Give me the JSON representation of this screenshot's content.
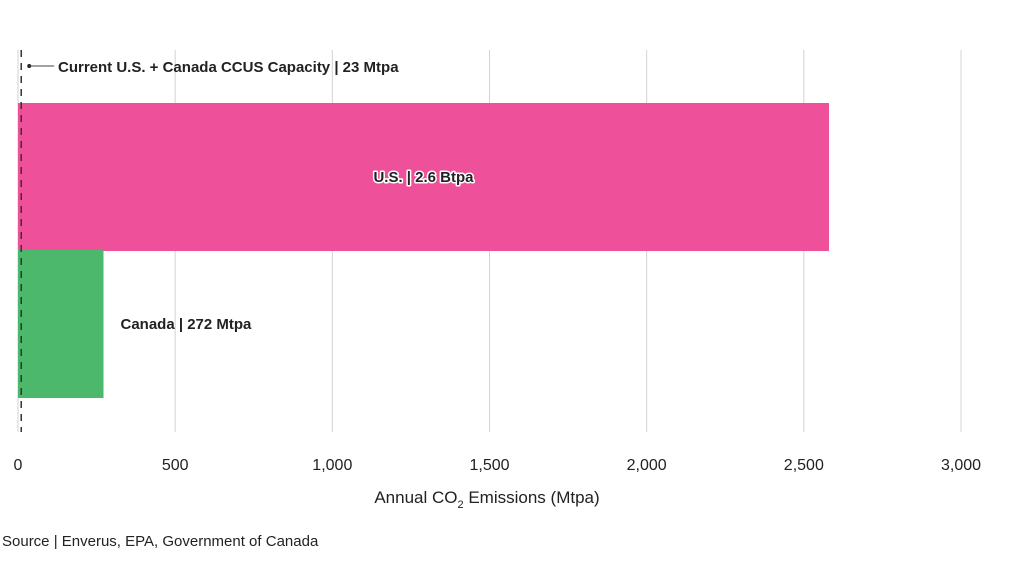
{
  "chart_data": {
    "type": "bar",
    "orientation": "horizontal",
    "title": "",
    "xlabel": "Annual CO2 Emissions (Mtpa)",
    "xlabel_parts": {
      "pre": "Annual CO",
      "sub": "2",
      "post": " Emissions (Mtpa)"
    },
    "ylabel": "",
    "xlim": [
      0,
      3000
    ],
    "x_ticks": [
      0,
      500,
      1000,
      1500,
      2000,
      2500,
      3000
    ],
    "x_tick_labels": [
      "0",
      "500",
      "1,000",
      "1,500",
      "2,000",
      "2,500",
      "3,000"
    ],
    "grid": "vertical",
    "legend": "none",
    "categories": [
      "U.S.",
      "Canada"
    ],
    "values": [
      2580,
      272
    ],
    "series": [
      {
        "name": "U.S.",
        "value": 2580,
        "label": "U.S. | 2.6 Btpa",
        "color": "#ef509a",
        "label_position": "inside-center"
      },
      {
        "name": "Canada",
        "value": 272,
        "label": "Canada | 272 Mtpa",
        "color": "#4cb86c",
        "label_position": "outside-right"
      }
    ],
    "reference_line": {
      "value": 23,
      "style": "dashed",
      "color": "#333333",
      "label": "Current U.S. + Canada CCUS Capacity | 23 Mtpa"
    },
    "source": "Source | Enverus, EPA, Government of Canada"
  }
}
